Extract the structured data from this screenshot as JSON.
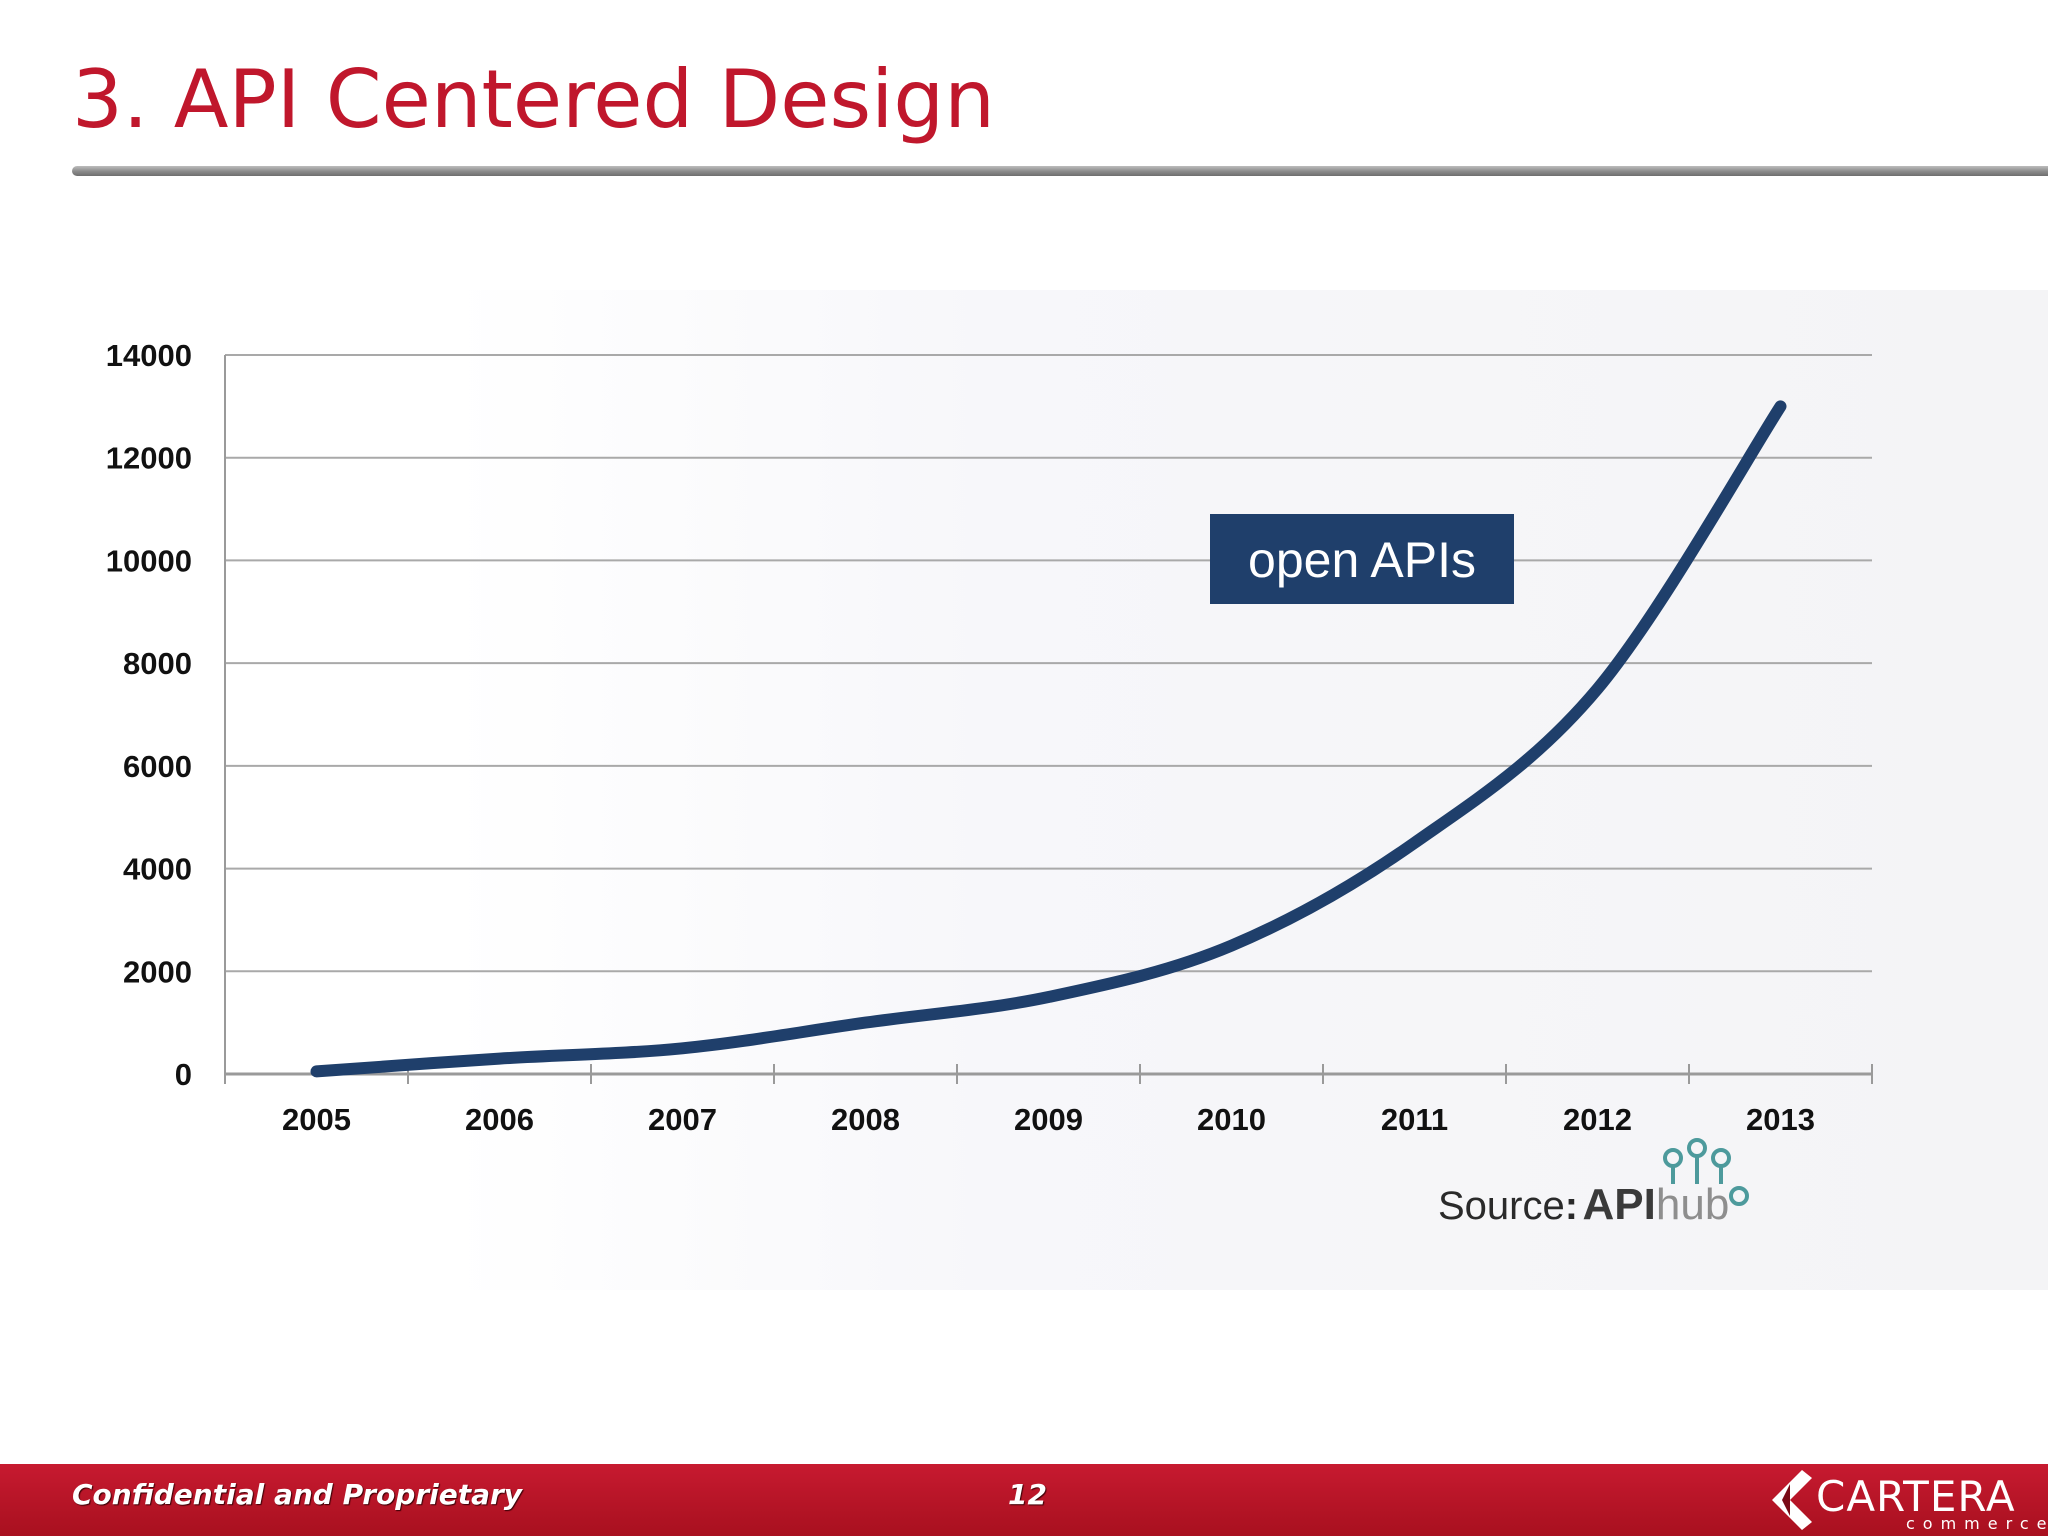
{
  "slide": {
    "title": "3. API Centered Design"
  },
  "chart_data": {
    "type": "line",
    "categories": [
      "2005",
      "2006",
      "2007",
      "2008",
      "2009",
      "2010",
      "2011",
      "2012",
      "2013"
    ],
    "series": [
      {
        "values": [
          50,
          300,
          500,
          1000,
          1500,
          2500,
          4500,
          7500,
          13000
        ],
        "color": "#1f3f6b"
      }
    ],
    "yticks": [
      0,
      2000,
      4000,
      6000,
      8000,
      10000,
      12000,
      14000
    ],
    "ylim": [
      0,
      14000
    ],
    "grid": true,
    "legend": "none",
    "annotation": {
      "text": "open APIs",
      "background": "#1f3f6b",
      "color": "#ffffff"
    }
  },
  "source": {
    "label": "Source",
    "separator": ":",
    "logo_text_bold": "API",
    "logo_text_light": "hub"
  },
  "footer": {
    "left_text": "Confidential and Proprietary",
    "page_number": "12",
    "logo_word": "CARTERA",
    "logo_sub": "commerce",
    "color": "#b5142a"
  }
}
